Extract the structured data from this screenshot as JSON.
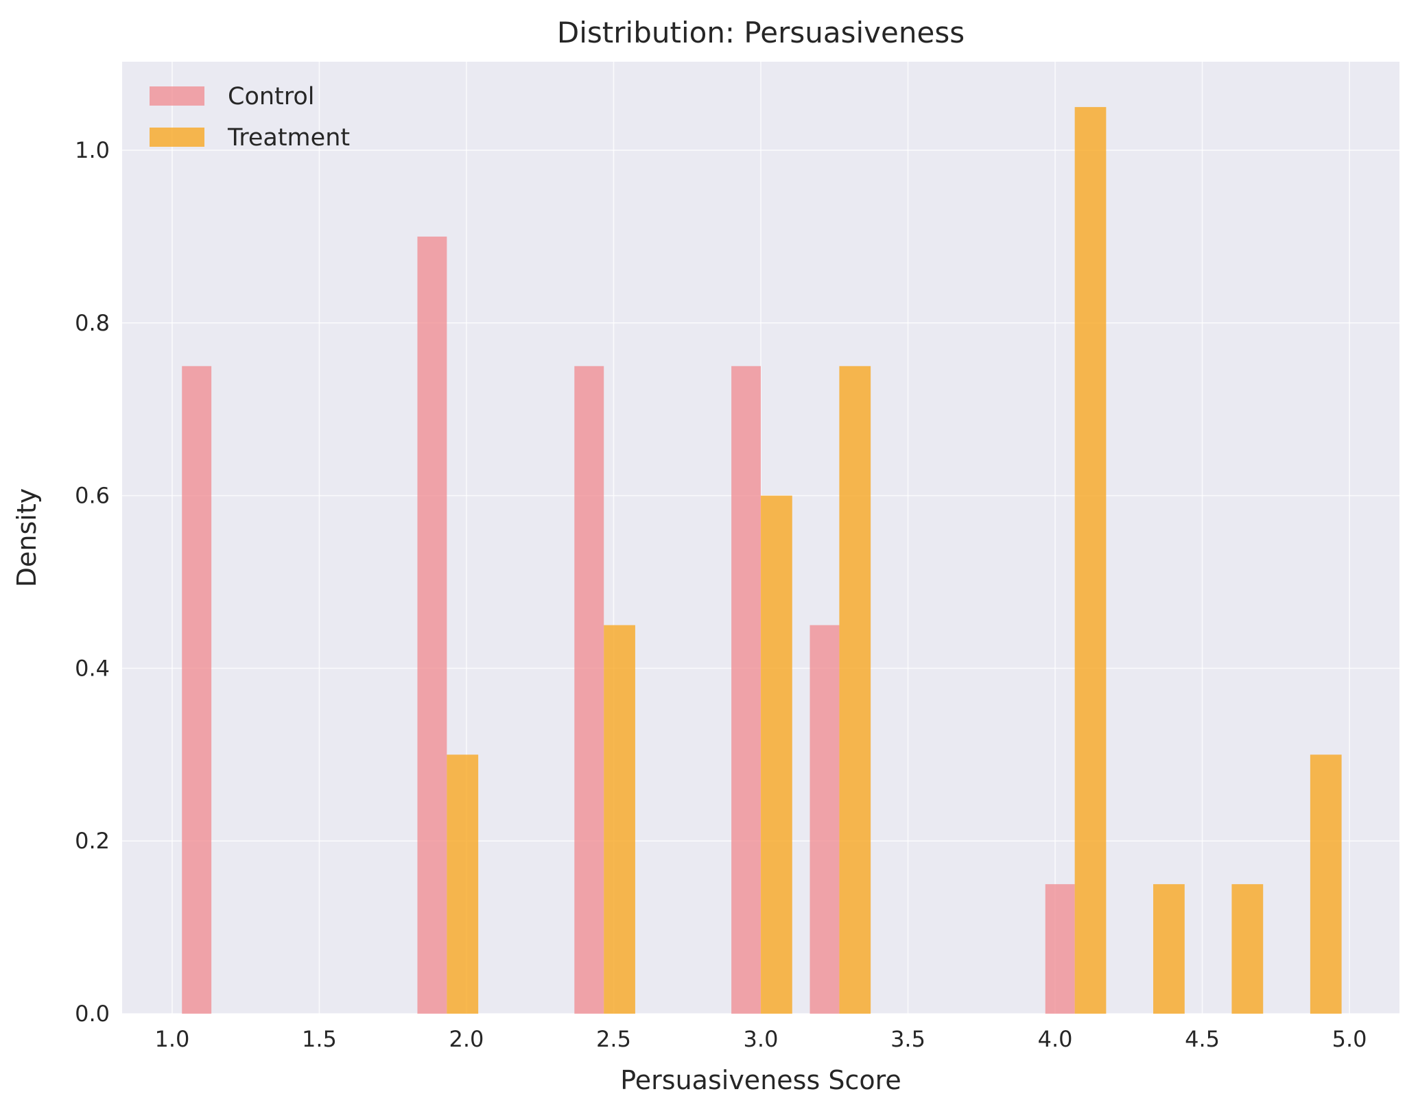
{
  "chart_data": {
    "type": "bar",
    "title": "Distribution: Persuasiveness",
    "xlabel": "Persuasiveness Score",
    "ylabel": "Density",
    "xlim": [
      0.83,
      5.17
    ],
    "ylim": [
      0,
      1.1025
    ],
    "xticks": [
      "1.0",
      "1.5",
      "2.0",
      "2.5",
      "3.0",
      "3.5",
      "4.0",
      "4.5",
      "5.0"
    ],
    "yticks": [
      "0.0",
      "0.2",
      "0.4",
      "0.6",
      "0.8",
      "1.0"
    ],
    "grid": true,
    "legend_position": "top-left",
    "series": [
      {
        "name": "Control",
        "color": "#f08a8f",
        "opacity": 0.75,
        "bins": [
          {
            "x0": 1.0333,
            "x1": 1.1333,
            "value": 0.75
          },
          {
            "x0": 1.8333,
            "x1": 1.9333,
            "value": 0.9
          },
          {
            "x0": 2.3667,
            "x1": 2.4667,
            "value": 0.75
          },
          {
            "x0": 2.9,
            "x1": 3.0,
            "value": 0.75
          },
          {
            "x0": 3.1667,
            "x1": 3.2667,
            "value": 0.45
          },
          {
            "x0": 3.9667,
            "x1": 4.0667,
            "value": 0.15
          }
        ]
      },
      {
        "name": "Treatment",
        "color": "#f7a823",
        "opacity": 0.8,
        "bins": [
          {
            "x0": 1.9333,
            "x1": 2.04,
            "value": 0.3
          },
          {
            "x0": 2.4667,
            "x1": 2.5733,
            "value": 0.45
          },
          {
            "x0": 3.0,
            "x1": 3.1067,
            "value": 0.6
          },
          {
            "x0": 3.2667,
            "x1": 3.3733,
            "value": 0.75
          },
          {
            "x0": 4.0667,
            "x1": 4.1733,
            "value": 1.05
          },
          {
            "x0": 4.3333,
            "x1": 4.44,
            "value": 0.15
          },
          {
            "x0": 4.6,
            "x1": 4.7067,
            "value": 0.15
          },
          {
            "x0": 4.8667,
            "x1": 4.9733,
            "value": 0.3
          }
        ]
      }
    ]
  }
}
